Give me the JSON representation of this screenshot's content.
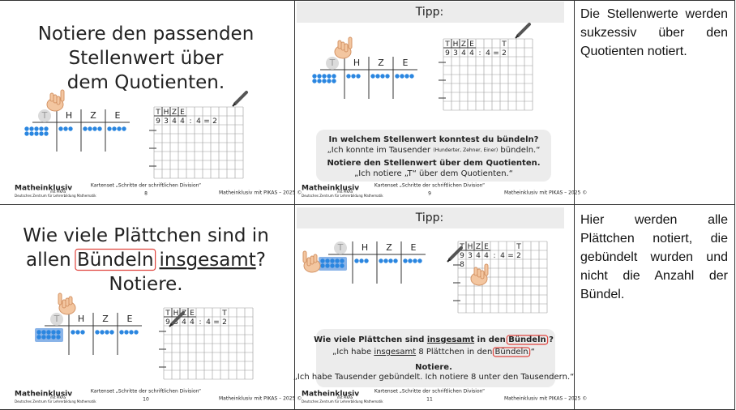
{
  "rows": [
    {
      "left": {
        "instruction": [
          [
            "Notiere den passenden"
          ],
          [
            "Stellenwert über"
          ],
          [
            "dem Quotienten."
          ]
        ],
        "place_values": [
          "T",
          "H",
          "Z",
          "E"
        ],
        "grid": {
          "header": [
            "T",
            "H",
            "Z",
            "E"
          ],
          "digits": [
            "9",
            "3",
            "4",
            "4",
            ":",
            "4",
            "=",
            "2"
          ]
        },
        "footer": {
          "logo": "Matheinklusiv",
          "logo_sub": "mit PIKAS",
          "org": "Deutsches Zentrum für Lehrerbildung Mathematik",
          "set": "Kartenset „Schritte der schriftlichen Division“",
          "page": 8,
          "copyright": "Matheinklusiv mit PIKAS – 2025 ©"
        }
      },
      "middle": {
        "title": "Tipp:",
        "place_values": [
          "T",
          "H",
          "Z",
          "E"
        ],
        "grid": {
          "header": [
            "T",
            "H",
            "Z",
            "E"
          ],
          "digits": [
            "9",
            "3",
            "4",
            "4",
            ":",
            "4",
            "=",
            "2"
          ],
          "quotient_label": "T"
        },
        "speech": [
          [
            "In welchem Stellenwert konntest du bündeln?"
          ],
          [
            "„Ich konnte im Tausender ",
            {
              "text": "(Hunderter, Zehner, Einer)",
              "mark": "small"
            },
            " bündeln.“"
          ],
          [
            "Notiere den Stellenwert über dem Quotienten."
          ],
          [
            "„Ich notiere „T“ über dem Quotienten.“"
          ]
        ],
        "footer": {
          "logo": "Matheinklusiv",
          "logo_sub": "mit PIKAS",
          "org": "Deutsches Zentrum für Lehrerbildung Mathematik",
          "set": "Kartenset „Schritte der schriftlichen Division“",
          "page": 9,
          "copyright": "Matheinklusiv mit PIKAS – 2025 ©"
        }
      },
      "note": "Die Stellenwerte werden sukzessiv über den Quotienten notiert."
    },
    {
      "left": {
        "instruction": [
          [
            "Wie viele Plättchen sind in"
          ],
          [
            "allen ",
            {
              "text": "Bündeln",
              "mark": "box"
            },
            {
              "text": "insgesamt",
              "mark": "underline"
            },
            "?"
          ],
          [
            "Notiere."
          ]
        ],
        "place_values": [
          "T",
          "H",
          "Z",
          "E"
        ],
        "grid": {
          "header": [
            "T",
            "H",
            "Z",
            "E"
          ],
          "digits": [
            "9",
            "3",
            "4",
            "4",
            ":",
            "4",
            "=",
            "2"
          ],
          "quotient_label": "T"
        },
        "footer": {
          "logo": "Matheinklusiv",
          "logo_sub": "mit PIKAS",
          "org": "Deutsches Zentrum für Lehrerbildung Mathematik",
          "set": "Kartenset „Schritte der schriftlichen Division“",
          "page": 10,
          "copyright": "Matheinklusiv mit PIKAS – 2025 ©"
        }
      },
      "middle": {
        "title": "Tipp:",
        "place_values": [
          "T",
          "H",
          "Z",
          "E"
        ],
        "grid": {
          "header": [
            "T",
            "H",
            "Z",
            "E"
          ],
          "digits": [
            "9",
            "3",
            "4",
            "4",
            ":",
            "4",
            "=",
            "2"
          ],
          "quotient_label": "T",
          "remainder": "8"
        },
        "speech": [
          [
            "Wie viele Plättchen sind ",
            {
              "text": "insgesamt",
              "mark": "underline"
            },
            " in den ",
            {
              "text": "Bündeln",
              "mark": "box"
            },
            " ?"
          ],
          [
            "„Ich habe ",
            {
              "text": "insgesamt",
              "mark": "underline"
            },
            " 8 Plättchen in den ",
            {
              "text": "Bündeln",
              "mark": "box"
            },
            ".“"
          ],
          [
            "Notiere."
          ],
          [
            "„Ich habe Tausender gebündelt. Ich notiere 8 unter den Tausendern.“"
          ]
        ],
        "footer": {
          "logo": "Matheinklusiv",
          "logo_sub": "mit PIKAS",
          "org": "Deutsches Zentrum für Lehrerbildung Mathematik",
          "set": "Kartenset „Schritte der schriftlichen Division“",
          "page": 11,
          "copyright": "Matheinklusiv mit PIKAS – 2025 ©"
        }
      },
      "note": "Hier werden alle Plättchen notiert, die gebündelt wurden und nicht die Anzahl der Bündel."
    }
  ]
}
